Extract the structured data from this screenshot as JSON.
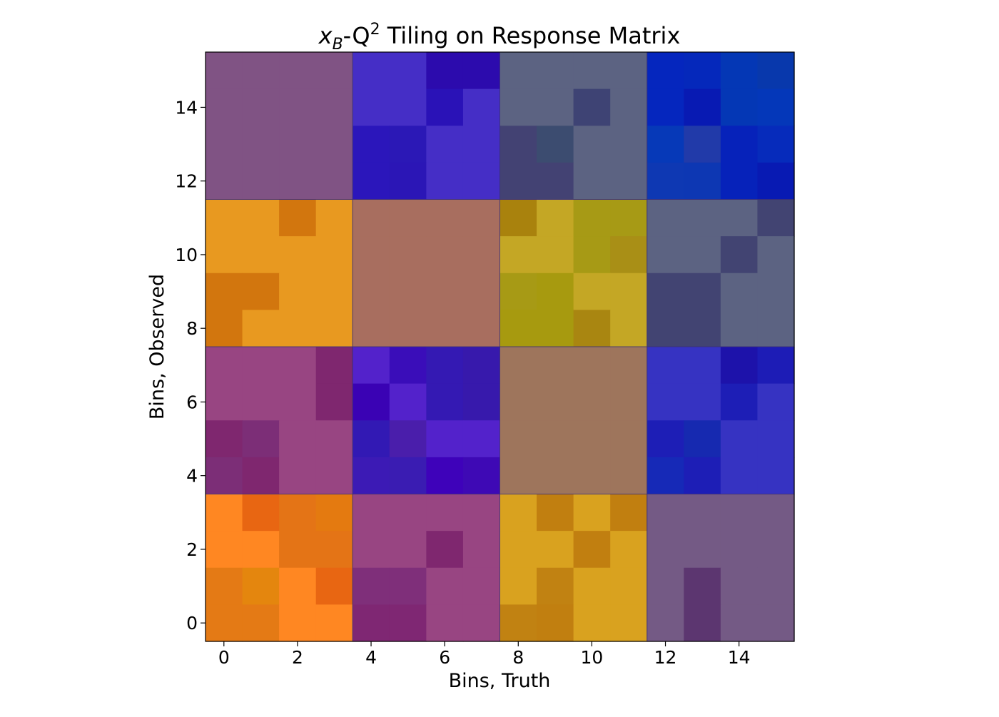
{
  "chart_data": {
    "type": "heatmap",
    "title_prefix": "x",
    "title_sub": "B",
    "title_mid": "-Q",
    "title_sup": "2",
    "title_suffix": " Tiling on Response Matrix",
    "xlabel": "Bins, Truth",
    "ylabel": "Bins, Observed",
    "xlim": [
      -0.5,
      15.5
    ],
    "ylim": [
      -0.5,
      15.5
    ],
    "xticks": [
      0,
      2,
      4,
      6,
      8,
      10,
      12,
      14
    ],
    "yticks": [
      0,
      2,
      4,
      6,
      8,
      10,
      12,
      14
    ],
    "block_size": 4,
    "grid": false,
    "cells_top_to_bottom": [
      [
        "#805384",
        "#805384",
        "#805384",
        "#805384",
        "#452EC6",
        "#452EC6",
        "#2C0BAD",
        "#2C0BAD",
        "#5C6382",
        "#5C6382",
        "#5C6382",
        "#5C6382",
        "#0526BE",
        "#0528BB",
        "#0437B5",
        "#0838AC"
      ],
      [
        "#805384",
        "#805384",
        "#805384",
        "#805384",
        "#452EC6",
        "#452EC6",
        "#2A12B7",
        "#452EC6",
        "#5C6382",
        "#5C6382",
        "#3E4374",
        "#5C6382",
        "#0526BE",
        "#081AB3",
        "#0437B5",
        "#0437B9"
      ],
      [
        "#805384",
        "#805384",
        "#805384",
        "#805384",
        "#2B16BB",
        "#2B18B6",
        "#452EC6",
        "#452EC6",
        "#434273",
        "#3C4C70",
        "#5C6382",
        "#5C6382",
        "#0639B8",
        "#213AA9",
        "#0622BA",
        "#062BBB"
      ],
      [
        "#805384",
        "#805384",
        "#805384",
        "#805384",
        "#2B16BB",
        "#2B16B6",
        "#452EC6",
        "#452EC6",
        "#434273",
        "#434273",
        "#5C6382",
        "#5C6382",
        "#0E38B3",
        "#0D37B3",
        "#0622BA",
        "#081AB3"
      ],
      [
        "#E89920",
        "#E89920",
        "#D2760E",
        "#E89920",
        "#A86E5F",
        "#A86E5F",
        "#A86E5F",
        "#A86E5F",
        "#A9820D",
        "#C4A725",
        "#A79A15",
        "#A79A15",
        "#5C6382",
        "#5C6382",
        "#5C6382",
        "#424472"
      ],
      [
        "#E89920",
        "#E89920",
        "#E89920",
        "#E89920",
        "#A86E5F",
        "#A86E5F",
        "#A86E5F",
        "#A86E5F",
        "#C4A725",
        "#C4A725",
        "#A79A15",
        "#A98F16",
        "#5C6382",
        "#5C6382",
        "#424472",
        "#5C6382"
      ],
      [
        "#D2760E",
        "#D2760E",
        "#E89920",
        "#E89920",
        "#A86E5F",
        "#A86E5F",
        "#A86E5F",
        "#A86E5F",
        "#A79A15",
        "#A79A0F",
        "#C4A725",
        "#C4A725",
        "#424472",
        "#424472",
        "#5C6382",
        "#5C6382"
      ],
      [
        "#D2760E",
        "#E89920",
        "#E89920",
        "#E89920",
        "#A86E5F",
        "#A86E5F",
        "#A86E5F",
        "#A86E5F",
        "#A79A0F",
        "#A79A0F",
        "#A98611",
        "#C4A725",
        "#424472",
        "#424472",
        "#5C6382",
        "#5C6382"
      ],
      [
        "#984582",
        "#984582",
        "#984582",
        "#7F276F",
        "#5322CB",
        "#3A0DB9",
        "#3419B3",
        "#3719AC",
        "#9E755C",
        "#9E755C",
        "#9E755C",
        "#9E755C",
        "#3633C2",
        "#3633C2",
        "#1D12AA",
        "#1D1CB6"
      ],
      [
        "#984582",
        "#984582",
        "#984582",
        "#7F276F",
        "#3A02B4",
        "#5322CB",
        "#3419B3",
        "#3719AC",
        "#9E755C",
        "#9E755C",
        "#9E755C",
        "#9E755C",
        "#3633C2",
        "#3633C2",
        "#1D1EB6",
        "#3633C2"
      ],
      [
        "#7F276F",
        "#7C2E77",
        "#984582",
        "#984582",
        "#3219B4",
        "#4A1EAB",
        "#5322CB",
        "#5322CB",
        "#9E755C",
        "#9E755C",
        "#9E755C",
        "#9E755C",
        "#1D1EB6",
        "#1629B0",
        "#3633C2",
        "#3633C2"
      ],
      [
        "#7C2E77",
        "#7F276F",
        "#984582",
        "#984582",
        "#3C1AB5",
        "#3A1CB2",
        "#3E02BA",
        "#3E09B5",
        "#9E755C",
        "#9E755C",
        "#9E755C",
        "#9E755C",
        "#1629B7",
        "#1D1EB6",
        "#3633C2",
        "#3633C2"
      ],
      [
        "#FF8722",
        "#E86612",
        "#E47416",
        "#E47A10",
        "#984582",
        "#984582",
        "#984582",
        "#984582",
        "#D9A21F",
        "#C17F10",
        "#D9A21F",
        "#C17F10",
        "#745A85",
        "#745A85",
        "#745A85",
        "#745A85"
      ],
      [
        "#FF8722",
        "#FF8722",
        "#E47416",
        "#E47416",
        "#984582",
        "#984582",
        "#7F276F",
        "#984582",
        "#D9A21F",
        "#D9A21F",
        "#C17F10",
        "#D9A21F",
        "#745A85",
        "#745A85",
        "#745A85",
        "#745A85"
      ],
      [
        "#E47A15",
        "#E4860E",
        "#FF8722",
        "#E86612",
        "#7F2F7A",
        "#7F2F7A",
        "#984582",
        "#984582",
        "#D9A21F",
        "#C18212",
        "#D9A21F",
        "#D9A21F",
        "#745A85",
        "#5C3670",
        "#745A85",
        "#745A85"
      ],
      [
        "#E47A15",
        "#E47A15",
        "#FF8722",
        "#FF8722",
        "#7F2773",
        "#7F2773",
        "#984582",
        "#984582",
        "#C18212",
        "#C17F10",
        "#D9A21F",
        "#D9A21F",
        "#745A85",
        "#5C3670",
        "#745A85",
        "#745A85"
      ]
    ]
  }
}
